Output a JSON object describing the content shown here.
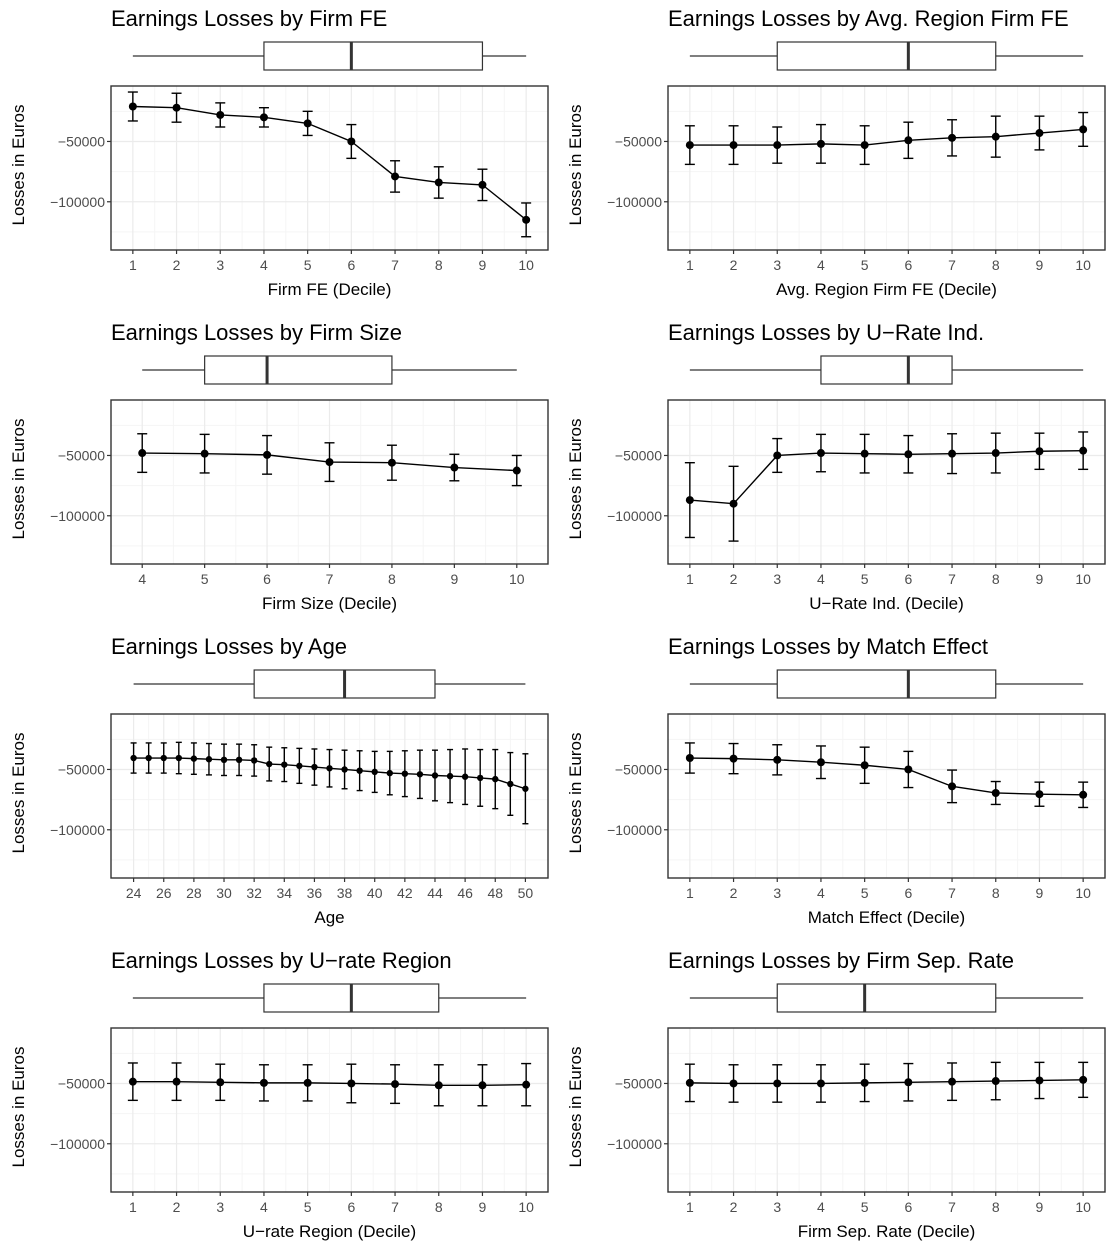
{
  "figure": {
    "colors": {
      "panel_border": "#333333",
      "grid_major": "#ebebeb",
      "grid_minor": "#f5f5f5",
      "series": "#000000",
      "tick_label": "#4d4d4d"
    }
  },
  "y_axis": {
    "label": "Losses in Euros",
    "ticks": [
      -50000,
      -100000
    ],
    "tick_labels": [
      "−50000",
      "−100000"
    ],
    "ylim": [
      -140000,
      -4000
    ]
  },
  "chart_data": [
    {
      "type": "line",
      "title": "Earnings Losses by Firm FE",
      "xlabel": "Firm FE (Decile)",
      "ylabel": "Losses in Euros",
      "x": [
        1,
        2,
        3,
        4,
        5,
        6,
        7,
        8,
        9,
        10
      ],
      "y": [
        -21000,
        -22000,
        -28000,
        -30000,
        -35000,
        -50000,
        -79000,
        -84000,
        -86000,
        -115000
      ],
      "err": [
        12000,
        12000,
        10000,
        8000,
        10000,
        14000,
        13000,
        13000,
        13000,
        14000
      ],
      "xticks": [
        1,
        2,
        3,
        4,
        5,
        6,
        7,
        8,
        9,
        10
      ],
      "xlim": [
        0.5,
        10.5
      ],
      "boxplot": {
        "whisker_low": 1,
        "q1": 4,
        "median": 6,
        "q3": 9,
        "whisker_high": 10
      },
      "grid": true
    },
    {
      "type": "line",
      "title": "Earnings Losses by Avg. Region Firm FE",
      "xlabel": "Avg. Region Firm FE (Decile)",
      "ylabel": "Losses in Euros",
      "x": [
        1,
        2,
        3,
        4,
        5,
        6,
        7,
        8,
        9,
        10
      ],
      "y": [
        -53000,
        -53000,
        -53000,
        -52000,
        -53000,
        -49000,
        -47000,
        -46000,
        -43000,
        -40000
      ],
      "err": [
        16000,
        16000,
        15000,
        16000,
        16000,
        15000,
        15000,
        17000,
        14000,
        14000
      ],
      "xticks": [
        1,
        2,
        3,
        4,
        5,
        6,
        7,
        8,
        9,
        10
      ],
      "xlim": [
        0.5,
        10.5
      ],
      "boxplot": {
        "whisker_low": 1,
        "q1": 3,
        "median": 6,
        "q3": 8,
        "whisker_high": 10
      },
      "grid": true
    },
    {
      "type": "line",
      "title": "Earnings Losses by Firm Size",
      "xlabel": "Firm Size (Decile)",
      "ylabel": "Losses in Euros",
      "x": [
        4,
        5,
        6,
        7,
        8,
        9,
        10
      ],
      "y": [
        -48000,
        -48500,
        -49500,
        -55500,
        -56000,
        -60000,
        -62500
      ],
      "err": [
        16000,
        16000,
        16000,
        16000,
        14500,
        11000,
        12500
      ],
      "xticks": [
        4,
        5,
        6,
        7,
        8,
        9,
        10
      ],
      "xlim": [
        3.5,
        10.5
      ],
      "boxplot": {
        "whisker_low": 4,
        "q1": 5,
        "median": 6,
        "q3": 8,
        "whisker_high": 10
      },
      "grid": true
    },
    {
      "type": "line",
      "title": "Earnings Losses by U−Rate Ind.",
      "xlabel": "U−Rate Ind. (Decile)",
      "ylabel": "Losses in Euros",
      "x": [
        1,
        2,
        3,
        4,
        5,
        6,
        7,
        8,
        9,
        10
      ],
      "y": [
        -87000,
        -90000,
        -50000,
        -48000,
        -48500,
        -49000,
        -48500,
        -48000,
        -46500,
        -46000
      ],
      "err": [
        31000,
        31000,
        14000,
        15500,
        16000,
        15500,
        16500,
        16500,
        15000,
        15500
      ],
      "xticks": [
        1,
        2,
        3,
        4,
        5,
        6,
        7,
        8,
        9,
        10
      ],
      "xlim": [
        0.5,
        10.5
      ],
      "boxplot": {
        "whisker_low": 1,
        "q1": 4,
        "median": 6,
        "q3": 7,
        "whisker_high": 10
      },
      "grid": true
    },
    {
      "type": "line",
      "title": "Earnings Losses by Age",
      "xlabel": "Age",
      "ylabel": "Losses in Euros",
      "x": [
        24,
        25,
        26,
        27,
        28,
        29,
        30,
        31,
        32,
        33,
        34,
        35,
        36,
        37,
        38,
        39,
        40,
        41,
        42,
        43,
        44,
        45,
        46,
        47,
        48,
        49,
        50
      ],
      "y": [
        -40500,
        -40500,
        -40500,
        -40500,
        -41000,
        -41500,
        -42000,
        -42000,
        -42500,
        -45500,
        -46000,
        -47000,
        -48000,
        -49000,
        -50000,
        -51000,
        -52000,
        -53000,
        -53500,
        -54000,
        -55000,
        -55500,
        -56000,
        -57000,
        -58000,
        -62000,
        -66000
      ],
      "err": [
        12500,
        12500,
        12500,
        13000,
        13000,
        13000,
        13000,
        13000,
        13000,
        14000,
        14000,
        14500,
        15000,
        15500,
        16000,
        16500,
        17000,
        18000,
        19000,
        20000,
        21000,
        22000,
        23000,
        23500,
        24500,
        26000,
        29000
      ],
      "xticks": [
        24,
        26,
        28,
        30,
        32,
        34,
        36,
        38,
        40,
        42,
        44,
        46,
        48,
        50
      ],
      "xlim": [
        22.5,
        51.5
      ],
      "boxplot": {
        "whisker_low": 24,
        "q1": 32,
        "median": 38,
        "q3": 44,
        "whisker_high": 50
      },
      "grid": true
    },
    {
      "type": "line",
      "title": "Earnings Losses by Match Effect",
      "xlabel": "Match Effect (Decile)",
      "ylabel": "Losses in Euros",
      "x": [
        1,
        2,
        3,
        4,
        5,
        6,
        7,
        8,
        9,
        10
      ],
      "y": [
        -40500,
        -41000,
        -42000,
        -44000,
        -46500,
        -50000,
        -64000,
        -69500,
        -70500,
        -71000
      ],
      "err": [
        12500,
        12500,
        12500,
        13500,
        15000,
        15000,
        13500,
        9500,
        10000,
        10500
      ],
      "xticks": [
        1,
        2,
        3,
        4,
        5,
        6,
        7,
        8,
        9,
        10
      ],
      "xlim": [
        0.5,
        10.5
      ],
      "boxplot": {
        "whisker_low": 1,
        "q1": 3,
        "median": 6,
        "q3": 8,
        "whisker_high": 10
      },
      "grid": true
    },
    {
      "type": "line",
      "title": "Earnings Losses by U−rate Region",
      "xlabel": "U−rate Region (Decile)",
      "ylabel": "Losses in Euros",
      "x": [
        1,
        2,
        3,
        4,
        5,
        6,
        7,
        8,
        9,
        10
      ],
      "y": [
        -48500,
        -48500,
        -49000,
        -49500,
        -49500,
        -50000,
        -50500,
        -51500,
        -51500,
        -51000
      ],
      "err": [
        15500,
        15500,
        15000,
        15000,
        15000,
        16000,
        16000,
        17000,
        17000,
        17500
      ],
      "xticks": [
        1,
        2,
        3,
        4,
        5,
        6,
        7,
        8,
        9,
        10
      ],
      "xlim": [
        0.5,
        10.5
      ],
      "boxplot": {
        "whisker_low": 1,
        "q1": 4,
        "median": 6,
        "q3": 8,
        "whisker_high": 10
      },
      "grid": true
    },
    {
      "type": "line",
      "title": "Earnings Losses by Firm Sep. Rate",
      "xlabel": "Firm Sep. Rate (Decile)",
      "ylabel": "Losses in Euros",
      "x": [
        1,
        2,
        3,
        4,
        5,
        6,
        7,
        8,
        9,
        10
      ],
      "y": [
        -49500,
        -50000,
        -50000,
        -50000,
        -49500,
        -49000,
        -48500,
        -48000,
        -47500,
        -47000
      ],
      "err": [
        15500,
        15500,
        15500,
        15500,
        15500,
        15500,
        15500,
        15500,
        15000,
        14500
      ],
      "xticks": [
        1,
        2,
        3,
        4,
        5,
        6,
        7,
        8,
        9,
        10
      ],
      "xlim": [
        0.5,
        10.5
      ],
      "boxplot": {
        "whisker_low": 1,
        "q1": 3,
        "median": 5,
        "q3": 8,
        "whisker_high": 10
      },
      "grid": true
    }
  ]
}
